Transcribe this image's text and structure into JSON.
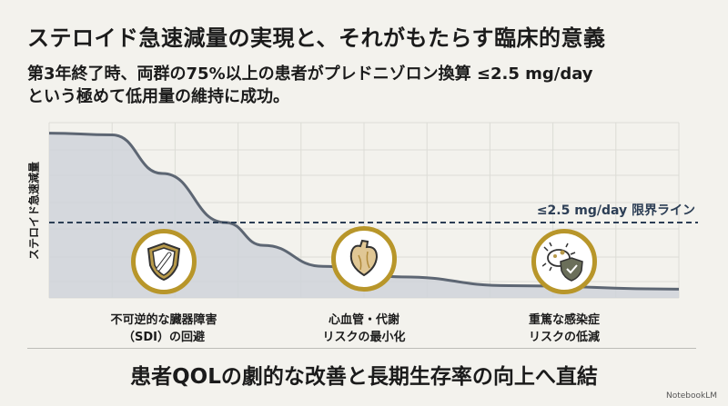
{
  "title": "ステロイド急速減量の実現と、それがもたらす臨床的意義",
  "subtitle": [
    "第3年終了時、両群の75%以上の患者がプレドニゾロン換算 ≤2.5 mg/day",
    "という極めて低用量の維持に成功。"
  ],
  "chart_data": {
    "type": "area",
    "ylabel": "ステロイド急速減量",
    "xlim": [
      0,
      10
    ],
    "ylim": [
      0,
      100
    ],
    "grid": true,
    "x": [
      0,
      1,
      1.8,
      2.8,
      3.4,
      4.35,
      5.6,
      7.3,
      10
    ],
    "values": [
      94,
      93,
      71,
      43,
      30,
      18,
      12,
      7,
      5
    ],
    "threshold": {
      "value": 43,
      "label": "≤2.5 mg/day 限界ライン"
    }
  },
  "benefits": [
    {
      "icon": "bone-shield-icon",
      "lines": [
        "不可逆的な臓器障害",
        "（SDI）の回避"
      ]
    },
    {
      "icon": "heart-icon",
      "lines": [
        "心血管・代謝",
        "リスクの最小化"
      ]
    },
    {
      "icon": "infection-shield-icon",
      "lines": [
        "重篤な感染症",
        "リスクの低減"
      ]
    }
  ],
  "conclusion": "患者QOLの劇的な改善と長期生存率の向上へ直結",
  "brand": "NotebookLM",
  "colors": {
    "accent": "#b8962a",
    "line": "#5d6673",
    "fill": "#cfd3d9",
    "dash": "#2c3e55"
  }
}
